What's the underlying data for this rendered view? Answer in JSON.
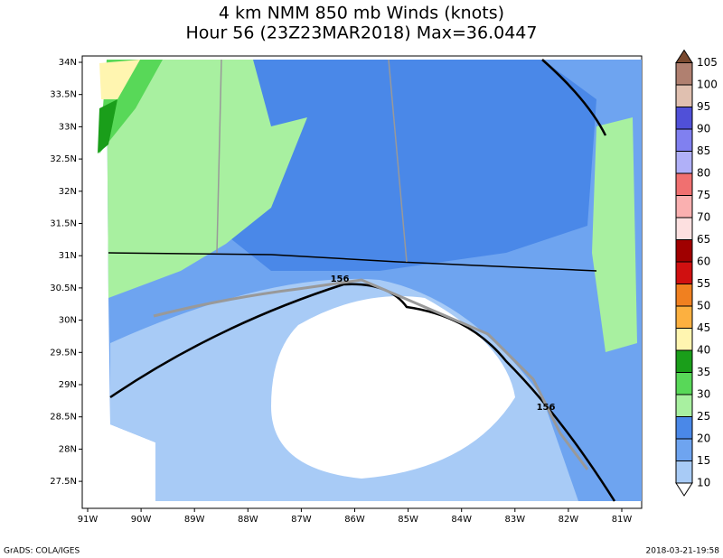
{
  "header": {
    "title": "4 km NMM 850 mb Winds (knots)",
    "subtitle": "Hour 56 (23Z23MAR2018) Max=36.0447"
  },
  "map": {
    "lon_labels": [
      "91W",
      "90W",
      "89W",
      "88W",
      "87W",
      "86W",
      "85W",
      "84W",
      "83W",
      "82W",
      "81W"
    ],
    "lat_labels": [
      "34N",
      "33.5N",
      "33N",
      "32.5N",
      "32N",
      "31.5N",
      "31N",
      "30.5N",
      "30N",
      "29.5N",
      "29N",
      "28.5N",
      "28N",
      "27.5N"
    ],
    "contour_labels": [
      "156",
      "156"
    ]
  },
  "legend": {
    "levels": [
      10,
      15,
      20,
      25,
      30,
      35,
      40,
      45,
      50,
      55,
      60,
      65,
      70,
      75,
      80,
      85,
      90,
      95,
      100,
      105
    ],
    "colors": [
      "#ffffff",
      "#a8cbf6",
      "#6ea4f0",
      "#4a88e8",
      "#a8f0a0",
      "#58d858",
      "#1a9e1a",
      "#fff5b0",
      "#fcb040",
      "#f08020",
      "#d01010",
      "#a00000",
      "#fde0e0",
      "#fab0b0",
      "#f07070",
      "#b0b0f8",
      "#8080f0",
      "#5050d8",
      "#e0c0b0",
      "#b08070",
      "#7a4a30"
    ]
  },
  "footer": {
    "left": "GrADS: COLA/IGES",
    "right": "2018-03-21-19:58"
  }
}
